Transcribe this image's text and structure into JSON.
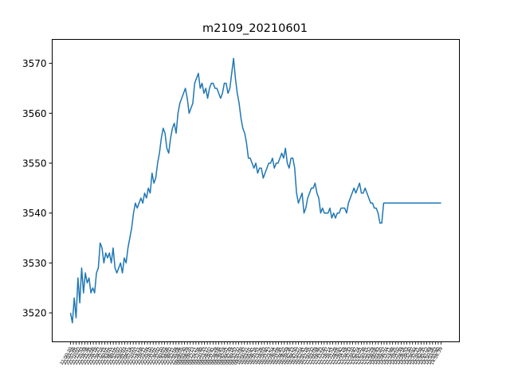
{
  "chart_data": {
    "type": "line",
    "title": "m2109_20210601",
    "xlabel": "",
    "ylabel": "",
    "ylim": [
      3514.2,
      3574.8
    ],
    "yticks": [
      3520,
      3530,
      3540,
      3550,
      3560,
      3570
    ],
    "grid": false,
    "line_color": "#1f77b4",
    "x_tick_labels": [
      "21:00:20",
      "21:03:58",
      "21:07:05",
      "21:10:02",
      "21:12:53",
      "21:15:39",
      "21:18:36",
      "21:21:35",
      "21:25:08",
      "21:28:18",
      "21:31:27",
      "21:34:16",
      "21:37:15",
      "21:40:01",
      "21:43:05",
      "21:46:11",
      "21:49:05",
      "21:52:07",
      "21:55:02",
      "21:58:03",
      "22:01:01",
      "22:04:14",
      "22:07:03",
      "22:10:07",
      "22:13:15",
      "22:16:08",
      "22:19:11",
      "22:22:04",
      "22:25:10",
      "22:28:02",
      "22:31:01",
      "22:34:02",
      "22:37:10",
      "22:40:03",
      "22:43:06",
      "22:46:02",
      "22:49:11",
      "22:52:04",
      "22:55:06",
      "22:58:05",
      "09:00:30",
      "09:03:29",
      "09:06:20",
      "09:09:13",
      "09:12:11",
      "09:14:56",
      "09:17:48",
      "09:20:33",
      "09:23:17",
      "09:26:02",
      "09:28:41",
      "09:31:29",
      "09:34:08",
      "09:36:45",
      "09:39:24",
      "09:42:01",
      "09:44:39",
      "09:47:16",
      "09:49:57",
      "09:52:32",
      "09:55:08",
      "09:57:47",
      "10:00:21",
      "10:03:01",
      "10:05:41",
      "10:08:16",
      "10:10:51",
      "10:13:26",
      "10:16:03",
      "10:18:40",
      "10:21:17",
      "10:23:54",
      "10:26:31",
      "10:29:08",
      "10:31:45",
      "10:34:22",
      "10:36:59",
      "10:39:36",
      "10:42:13",
      "10:44:50",
      "10:47:27",
      "10:50:04",
      "10:52:41",
      "10:55:18",
      "10:57:55",
      "11:00:32",
      "11:03:09",
      "11:05:46",
      "11:08:23",
      "11:11:00",
      "11:13:37",
      "11:16:14",
      "11:18:51",
      "11:21:28",
      "11:24:05",
      "11:26:42",
      "11:29:19",
      "13:31:56",
      "13:34:33",
      "13:37:10",
      "13:39:47",
      "13:42:24",
      "13:45:01",
      "13:47:38",
      "13:50:15",
      "13:52:52",
      "13:55:29",
      "13:58:06",
      "14:00:43",
      "14:03:20",
      "14:05:57",
      "14:08:34",
      "14:11:11",
      "14:13:48",
      "14:16:25",
      "14:19:02",
      "14:21:39",
      "14:24:16",
      "14:26:53",
      "14:29:30",
      "14:32:07",
      "14:34:44",
      "14:37:21",
      "14:39:58",
      "14:42:35",
      "14:45:12",
      "14:47:49",
      "14:50:26",
      "14:53:03",
      "14:55:40",
      "14:56:39"
    ],
    "series": [
      {
        "name": "",
        "x": [
          0.0,
          0.005,
          0.01,
          0.015,
          0.02,
          0.025,
          0.03,
          0.035,
          0.04,
          0.045,
          0.05,
          0.055,
          0.06,
          0.065,
          0.07,
          0.075,
          0.08,
          0.085,
          0.09,
          0.095,
          0.1,
          0.105,
          0.11,
          0.115,
          0.12,
          0.125,
          0.13,
          0.135,
          0.14,
          0.145,
          0.15,
          0.155,
          0.16,
          0.165,
          0.17,
          0.175,
          0.18,
          0.185,
          0.19,
          0.195,
          0.2,
          0.205,
          0.21,
          0.215,
          0.22,
          0.225,
          0.23,
          0.235,
          0.24,
          0.245,
          0.25,
          0.255,
          0.26,
          0.265,
          0.27,
          0.275,
          0.28,
          0.285,
          0.29,
          0.295,
          0.3,
          0.305,
          0.31,
          0.315,
          0.32,
          0.325,
          0.33,
          0.335,
          0.34,
          0.345,
          0.35,
          0.355,
          0.36,
          0.365,
          0.37,
          0.375,
          0.38,
          0.385,
          0.39,
          0.395,
          0.4,
          0.405,
          0.41,
          0.415,
          0.42,
          0.425,
          0.43,
          0.435,
          0.44,
          0.445,
          0.45,
          0.455,
          0.46,
          0.465,
          0.47,
          0.475,
          0.48,
          0.485,
          0.49,
          0.495,
          0.5,
          0.505,
          0.51,
          0.515,
          0.52,
          0.525,
          0.53,
          0.535,
          0.54,
          0.545,
          0.55,
          0.555,
          0.56,
          0.565,
          0.57,
          0.575,
          0.58,
          0.585,
          0.59,
          0.595,
          0.6,
          0.605,
          0.61,
          0.615,
          0.62,
          0.625,
          0.63,
          0.635,
          0.64,
          0.645,
          0.65,
          0.655,
          0.66,
          0.665,
          0.67,
          0.675,
          0.68,
          0.685,
          0.69,
          0.695,
          0.7,
          0.705,
          0.71,
          0.715,
          0.72,
          0.725,
          0.73,
          0.735,
          0.74,
          0.745,
          0.75,
          0.755,
          0.76,
          0.765,
          0.77,
          0.775,
          0.78,
          0.785,
          0.79,
          0.795,
          0.8,
          0.805,
          0.81,
          0.815,
          0.82,
          0.825,
          0.83,
          0.835,
          0.84,
          0.845,
          0.85,
          0.855,
          0.86,
          0.865,
          0.87,
          0.875,
          0.88,
          0.885,
          0.89,
          0.895,
          0.9,
          0.905,
          0.91,
          0.915,
          0.92,
          0.925,
          0.93,
          0.935,
          0.94,
          0.945,
          0.95,
          0.955,
          0.96,
          0.965,
          0.97,
          0.975,
          0.98,
          0.985,
          0.99,
          0.995,
          1.0
        ],
        "values": [
          3520,
          3518,
          3523,
          3519,
          3527,
          3522,
          3529,
          3524,
          3528,
          3526,
          3527,
          3524,
          3525,
          3524,
          3528,
          3529,
          3534,
          3533,
          3530,
          3532,
          3531,
          3532,
          3530,
          3533,
          3529,
          3528,
          3529,
          3530,
          3528,
          3531,
          3530,
          3533,
          3535,
          3537,
          3540,
          3542,
          3541,
          3542,
          3543,
          3542,
          3544,
          3543,
          3545,
          3544,
          3548,
          3546,
          3547,
          3550,
          3552,
          3555,
          3557,
          3556,
          3553,
          3552,
          3555,
          3557,
          3558,
          3556,
          3560,
          3562,
          3563,
          3564,
          3565,
          3563,
          3560,
          3561,
          3562,
          3566,
          3567,
          3568,
          3565,
          3566,
          3564,
          3565,
          3563,
          3565,
          3566,
          3566,
          3565,
          3565,
          3564,
          3563,
          3564,
          3566,
          3566,
          3564,
          3565,
          3568,
          3571,
          3567,
          3564,
          3562,
          3559,
          3557,
          3556,
          3554,
          3551,
          3551,
          3550,
          3549,
          3550,
          3548,
          3549,
          3549,
          3547,
          3548,
          3549,
          3550,
          3550,
          3551,
          3549,
          3550,
          3550,
          3551,
          3552,
          3551,
          3553,
          3550,
          3549,
          3551,
          3551,
          3549,
          3544,
          3542,
          3543,
          3544,
          3540,
          3541,
          3543,
          3544,
          3545,
          3545,
          3546,
          3544,
          3543,
          3540,
          3541,
          3540,
          3540,
          3540,
          3541,
          3539,
          3540,
          3539,
          3540,
          3540,
          3541,
          3541,
          3541,
          3540,
          3542,
          3543,
          3544,
          3545,
          3544,
          3545,
          3546,
          3544,
          3544,
          3545,
          3544,
          3543,
          3542,
          3542,
          3541,
          3541,
          3540,
          3538,
          3538,
          3542,
          3542,
          3542,
          3542,
          3542,
          3542,
          3542,
          3542,
          3542,
          3542,
          3542,
          3542,
          3542,
          3542,
          3542,
          3542,
          3542,
          3542,
          3542,
          3542,
          3542,
          3542,
          3542,
          3542,
          3542,
          3542,
          3542,
          3542,
          3542,
          3542,
          3542,
          3542
        ]
      }
    ]
  }
}
